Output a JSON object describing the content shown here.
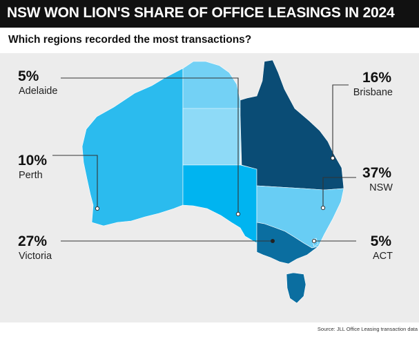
{
  "header": {
    "title": "NSW WON LION'S SHARE OF OFFICE LEASINGS IN 2024",
    "subtitle": "Which regions recorded the most transactions?"
  },
  "regions": [
    {
      "name": "Adelaide",
      "share": "5%",
      "color": "#00b4f0"
    },
    {
      "name": "Brisbane",
      "share": "16%",
      "color": "#0a4c75"
    },
    {
      "name": "Perth",
      "share": "10%",
      "color": "#2bbbee"
    },
    {
      "name": "NSW",
      "share": "37%",
      "color": "#68cdf4"
    },
    {
      "name": "Victoria",
      "share": "27%",
      "color": "#0b6ea0"
    },
    {
      "name": "ACT",
      "share": "5%",
      "color": "#68cdf4"
    }
  ],
  "other_colors": {
    "northern_territory_north": "#73d1f5",
    "northern_territory_south": "#8edaf7",
    "tasmania": "#0b6ea0"
  },
  "source": "Source: JLL Office Leasing transaction data"
}
